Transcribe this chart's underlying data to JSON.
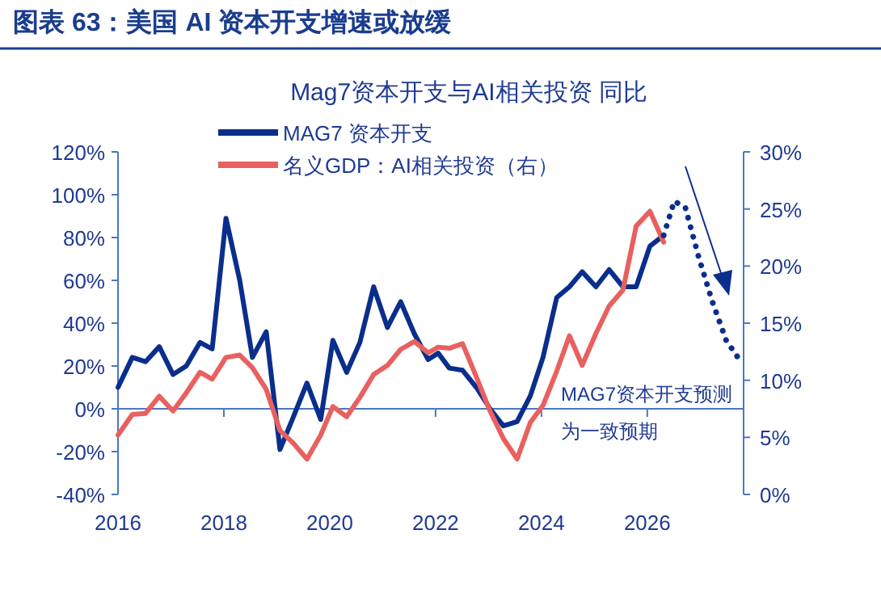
{
  "chart_data": {
    "type": "line",
    "title": "图表 63：美国 AI 资本开支增速或放缓",
    "subtitle": "Mag7资本开支与AI相关投资 同比",
    "xlim": [
      2016,
      2027.82
    ],
    "xticks": [
      2016,
      2018,
      2020,
      2022,
      2024,
      2026
    ],
    "ylim": [
      -40,
      120
    ],
    "yticks": [
      {
        "value": -40,
        "label": "-40%"
      },
      {
        "value": -20,
        "label": "-20%"
      },
      {
        "value": 0,
        "label": "0%"
      },
      {
        "value": 20,
        "label": "20%"
      },
      {
        "value": 40,
        "label": "40%"
      },
      {
        "value": 60,
        "label": "60%"
      },
      {
        "value": 80,
        "label": "80%"
      },
      {
        "value": 100,
        "label": "100%"
      },
      {
        "value": 120,
        "label": "120%"
      }
    ],
    "y2lim": [
      0,
      30
    ],
    "y2ticks": [
      {
        "value": 0,
        "label": "0%"
      },
      {
        "value": 5,
        "label": "5%"
      },
      {
        "value": 10,
        "label": "10%"
      },
      {
        "value": 15,
        "label": "15%"
      },
      {
        "value": 20,
        "label": "20%"
      },
      {
        "value": 25,
        "label": "25%"
      },
      {
        "value": 30,
        "label": "30%"
      }
    ],
    "legend": "top",
    "grid": false,
    "ref_lines": [
      {
        "axis": "y",
        "value": 0,
        "color": "#4a78c0"
      }
    ],
    "series": [
      {
        "name": "MAG7 资本开支",
        "color": "#0a2e8c",
        "line_style": "solid",
        "x": [
          2016.0,
          2016.27,
          2016.52,
          2016.78,
          2017.04,
          2017.29,
          2017.55,
          2017.78,
          2018.04,
          2018.3,
          2018.54,
          2018.8,
          2019.06,
          2019.31,
          2019.57,
          2019.83,
          2020.06,
          2020.32,
          2020.57,
          2020.83,
          2021.09,
          2021.34,
          2021.6,
          2021.86,
          2022.05,
          2022.26,
          2022.51,
          2022.77,
          2023.03,
          2023.28,
          2023.54,
          2023.79,
          2024.03,
          2024.29,
          2024.53,
          2024.77,
          2025.03,
          2025.28,
          2025.54,
          2025.79,
          2026.05,
          2026.31
        ],
        "values": [
          10,
          24,
          22,
          29,
          16,
          20,
          31,
          28,
          89,
          60,
          24,
          36,
          -19,
          -4,
          12,
          -5,
          32,
          17,
          31,
          57,
          38,
          50,
          35,
          23,
          26,
          19,
          18,
          10,
          0,
          -8,
          -6,
          6,
          24,
          52,
          57,
          64,
          57,
          65,
          57,
          57,
          76,
          81
        ]
      },
      {
        "name": "名义GDP：AI相关投资（右）",
        "color": "#e8605f",
        "line_style": "solid",
        "axis": "y2",
        "x": [
          2016.0,
          2016.27,
          2016.52,
          2016.78,
          2017.04,
          2017.29,
          2017.55,
          2017.78,
          2018.04,
          2018.3,
          2018.54,
          2018.8,
          2019.06,
          2019.31,
          2019.57,
          2019.83,
          2020.06,
          2020.32,
          2020.57,
          2020.83,
          2021.09,
          2021.34,
          2021.6,
          2021.86,
          2022.05,
          2022.26,
          2022.51,
          2022.77,
          2023.03,
          2023.28,
          2023.54,
          2023.79,
          2024.03,
          2024.29,
          2024.53,
          2024.77,
          2025.03,
          2025.28,
          2025.54,
          2025.79,
          2026.05,
          2026.31
        ],
        "values": [
          5.2,
          7.0,
          7.1,
          8.6,
          7.3,
          8.9,
          10.7,
          10.1,
          12.0,
          12.2,
          11.1,
          9.2,
          5.6,
          4.5,
          3.1,
          5.2,
          7.7,
          6.8,
          8.5,
          10.5,
          11.3,
          12.7,
          13.4,
          12.4,
          12.9,
          12.8,
          13.2,
          10.3,
          7.3,
          4.9,
          3.1,
          6.3,
          7.8,
          10.8,
          13.9,
          11.3,
          14.1,
          16.5,
          17.9,
          23.5,
          24.8,
          22.1
        ]
      },
      {
        "color": "#0a2e8c",
        "line_style": "dotted",
        "x": [
          2026.31,
          2026.51,
          2026.72,
          2026.97,
          2027.23,
          2027.49,
          2027.74
        ],
        "values": [
          81,
          97,
          94,
          71,
          50,
          32,
          23
        ]
      }
    ],
    "annotations": [
      "MAG7资本开支预测",
      "为一致预期"
    ]
  }
}
